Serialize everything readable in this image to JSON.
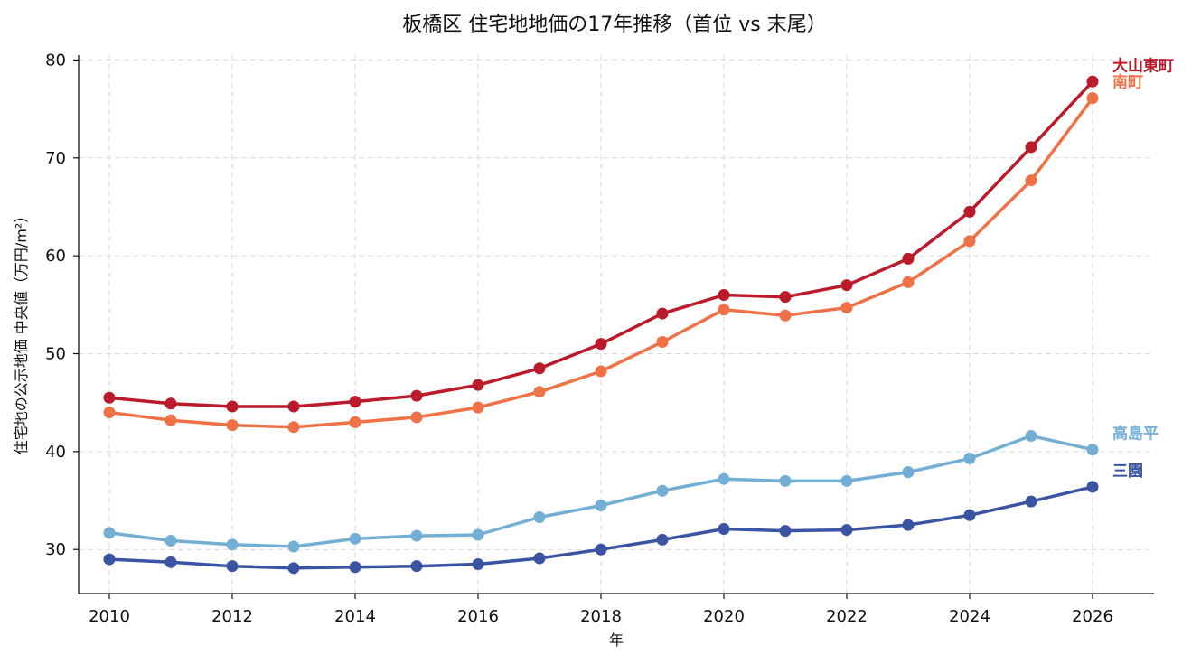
{
  "chart_data": {
    "type": "line",
    "title": "板橋区 住宅地地価の17年推移（首位 vs 末尾）",
    "xlabel": "年",
    "ylabel": "住宅地の公示地価 中央値（万円/m²）",
    "x": [
      2010,
      2011,
      2012,
      2013,
      2014,
      2015,
      2016,
      2017,
      2018,
      2019,
      2020,
      2021,
      2022,
      2023,
      2024,
      2025,
      2026
    ],
    "xlim": [
      2009.5,
      2027
    ],
    "ylim": [
      25.5,
      80.5
    ],
    "xticks": [
      "2010",
      "2012",
      "2014",
      "2016",
      "2018",
      "2020",
      "2022",
      "2024",
      "2026"
    ],
    "yticks": [
      "30",
      "40",
      "50",
      "60",
      "70",
      "80"
    ],
    "grid": true,
    "legend": "end-labels",
    "series": [
      {
        "name": "大山東町",
        "color": "#bb1a2b",
        "values": [
          45.5,
          44.9,
          44.6,
          44.6,
          45.1,
          45.7,
          46.8,
          48.5,
          51.0,
          54.1,
          56.0,
          55.8,
          57.0,
          59.7,
          64.5,
          71.1,
          77.8
        ]
      },
      {
        "name": "南町",
        "color": "#f07146",
        "values": [
          44.0,
          43.2,
          42.7,
          42.5,
          43.0,
          43.5,
          44.5,
          46.1,
          48.2,
          51.2,
          54.5,
          53.9,
          54.7,
          57.3,
          61.5,
          67.7,
          76.1
        ]
      },
      {
        "name": "高島平",
        "color": "#73afd4",
        "values": [
          31.7,
          30.9,
          30.5,
          30.3,
          31.1,
          31.4,
          31.5,
          33.3,
          34.5,
          36.0,
          37.2,
          37.0,
          37.0,
          37.9,
          39.3,
          41.6,
          40.2
        ]
      },
      {
        "name": "三園",
        "color": "#3a53a2",
        "values": [
          29.0,
          28.7,
          28.3,
          28.1,
          28.2,
          28.3,
          28.5,
          29.1,
          30.0,
          31.0,
          32.1,
          31.9,
          32.0,
          32.5,
          33.5,
          34.9,
          36.4
        ]
      }
    ]
  }
}
